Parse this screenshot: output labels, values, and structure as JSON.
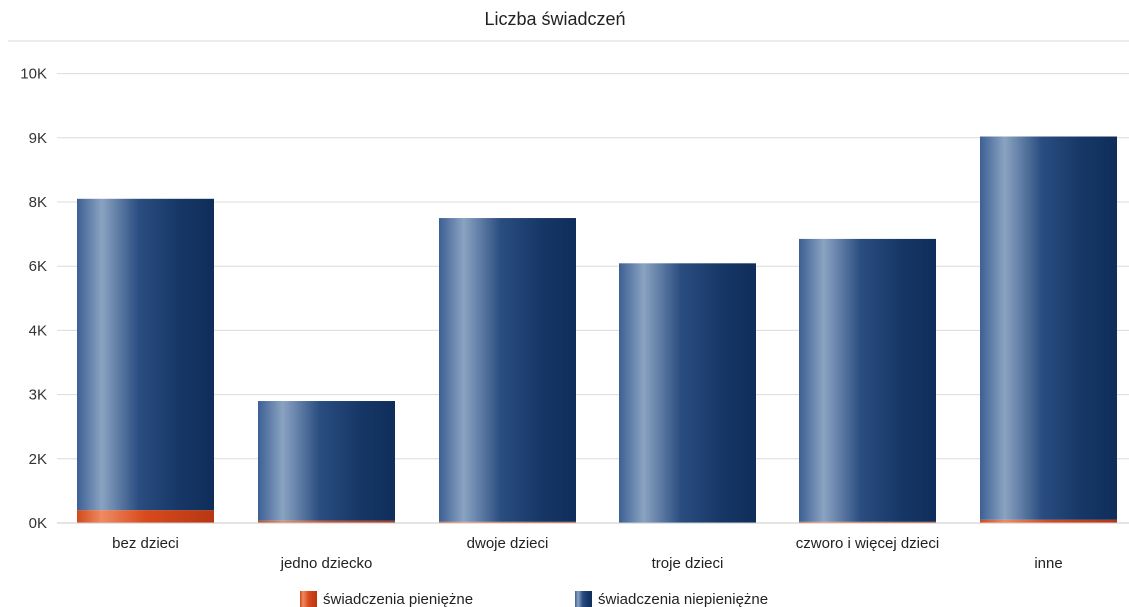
{
  "chart_data": {
    "type": "bar",
    "stacked": true,
    "title": "Liczba świadczeń",
    "xlabel": "",
    "ylabel": "",
    "categories": [
      "bez dzieci",
      "jedno dziecko",
      "dwoje dzieci",
      "troje dzieci",
      "czworo i więcej dzieci",
      "inne"
    ],
    "series": [
      {
        "name": "świadczenia pieniężne",
        "color": "#d94a1e",
        "values": [
          400,
          70,
          40,
          10,
          40,
          100
        ]
      },
      {
        "name": "świadczenia niepieniężne",
        "color": "#1f3f73",
        "values": [
          7650,
          2830,
          7460,
          6080,
          6810,
          8920
        ]
      }
    ],
    "y_ticks": [
      {
        "label": "0K",
        "position": 0
      },
      {
        "label": "2K",
        "position": 1
      },
      {
        "label": "3K",
        "position": 2
      },
      {
        "label": "4K",
        "position": 3
      },
      {
        "label": "6K",
        "position": 4
      },
      {
        "label": "8K",
        "position": 5
      },
      {
        "label": "9K",
        "position": 6
      },
      {
        "label": "10K",
        "position": 7
      }
    ],
    "grid": true,
    "legend_position": "bottom"
  }
}
